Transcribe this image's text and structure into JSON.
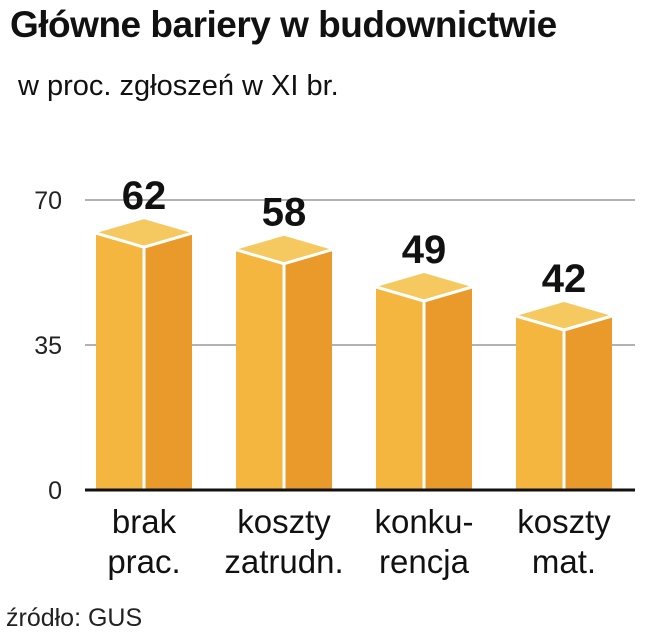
{
  "chart_data": {
    "type": "bar",
    "title": "Główne bariery w budownictwie",
    "subtitle": "w proc. zgłoszeń w XI br.",
    "source": "źródło: GUS",
    "categories": [
      [
        "brak",
        "prac."
      ],
      [
        "koszty",
        "zatrudn."
      ],
      [
        "konku-",
        "rencja"
      ],
      [
        "koszty",
        "mat."
      ]
    ],
    "values": [
      62,
      58,
      49,
      42
    ],
    "ylim": [
      0,
      70
    ],
    "yticks": [
      0,
      35,
      70
    ],
    "grid": true,
    "colors": {
      "front": "#f4b63f",
      "side": "#e99a2a",
      "top": "#f6c860",
      "grid": "#999999",
      "axis": "#111111"
    }
  }
}
